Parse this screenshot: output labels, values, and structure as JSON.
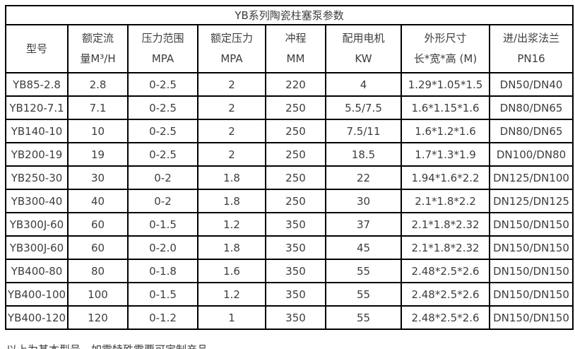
{
  "title": "YB系列陶瓷柱塞泵参数",
  "table": {
    "column_keys": [
      "model",
      "rated-flow",
      "pressure-range",
      "rated-pressure",
      "stroke",
      "motor-power",
      "dimensions",
      "flange"
    ],
    "columns": [
      {
        "line1": "型号",
        "line2": ""
      },
      {
        "line1": "额定流",
        "line2": "量M³/H"
      },
      {
        "line1": "压力范围",
        "line2": "MPA"
      },
      {
        "line1": "额定压力",
        "line2": "MPA"
      },
      {
        "line1": "冲程",
        "line2": "MM"
      },
      {
        "line1": "配用电机",
        "line2": "KW"
      },
      {
        "line1": "外形尺寸",
        "line2": "长*宽*高 (M)"
      },
      {
        "line1": "进/出浆法兰",
        "line2": "PN16"
      }
    ],
    "rows": [
      [
        "YB85-2.8",
        "2.8",
        "0-2.5",
        "2",
        "220",
        "4",
        "1.29*1.05*1.5",
        "DN50/DN40"
      ],
      [
        "YB120-7.1",
        "7.1",
        "0-2.5",
        "2",
        "250",
        "5.5/7.5",
        "1.6*1.15*1.6",
        "DN80/DN65"
      ],
      [
        "YB140-10",
        "10",
        "0-2.5",
        "2",
        "250",
        "7.5/11",
        "1.6*1.2*1.6",
        "DN80/DN65"
      ],
      [
        "YB200-19",
        "19",
        "0-2.5",
        "2",
        "250",
        "18.5",
        "1.7*1.3*1.9",
        "DN100/DN80"
      ],
      [
        "YB250-30",
        "30",
        "0-2",
        "1.8",
        "250",
        "22",
        "1.94*1.6*2.2",
        "DN125/DN100"
      ],
      [
        "YB300-40",
        "40",
        "0-2",
        "1.8",
        "250",
        "30",
        "2.1*1.8*2.2",
        "DN125/DN125"
      ],
      [
        "YB300J-60",
        "60",
        "0-1.5",
        "1.2",
        "350",
        "37",
        "2.1*1.8*2.32",
        "DN150/DN150"
      ],
      [
        "YB300J-60",
        "60",
        "0-2.0",
        "1.8",
        "350",
        "45",
        "2.1*1.8*2.32",
        "DN150/DN150"
      ],
      [
        "YB400-80",
        "80",
        "0-1.8",
        "1.6",
        "350",
        "55",
        "2.48*2.5*2.6",
        "DN150/DN150"
      ],
      [
        "YB400-100",
        "100",
        "0-1.5",
        "1.2",
        "350",
        "55",
        "2.48*2.5*2.6",
        "DN150/DN150"
      ],
      [
        "YB400-120",
        "120",
        "0-1.2",
        "1",
        "350",
        "55",
        "2.48*2.5*2.6",
        "DN150/DN150"
      ]
    ]
  },
  "footer_note": "以上为基本型号，如需特殊需要可定制产品。",
  "colors": {
    "border": "#000000",
    "text": "#3d3d3d",
    "background": "#ffffff"
  }
}
